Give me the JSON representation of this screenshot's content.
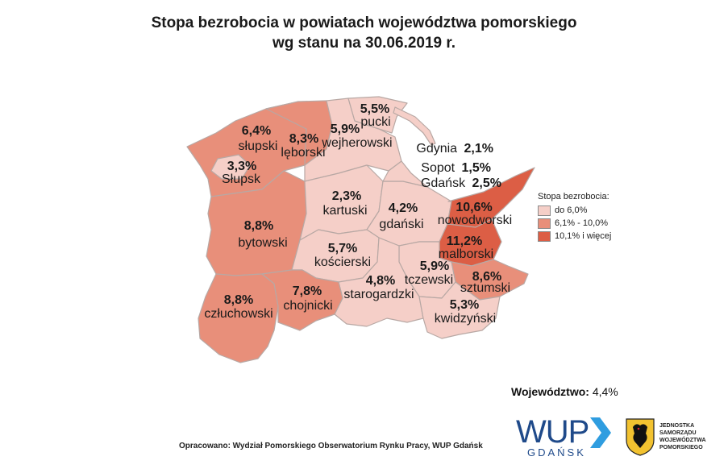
{
  "title": {
    "line1": "Stopa bezrobocia w powiatach województwa pomorskiego",
    "line2": "wg stanu na 30.06.2019 r."
  },
  "colors": {
    "low": "#f5cfc8",
    "mid": "#e88f7a",
    "high": "#dc5e45",
    "border": "#b8a8a4",
    "bay": "#ffffff"
  },
  "districts": [
    {
      "id": "slupski",
      "name": "słupski",
      "value": "6,4%",
      "class": "mid"
    },
    {
      "id": "slupsk",
      "name": "Słupsk",
      "value": "3,3%",
      "class": "low"
    },
    {
      "id": "leborski",
      "name": "lęborski",
      "value": "8,3%",
      "class": "mid"
    },
    {
      "id": "wejherowski",
      "name": "wejherowski",
      "value": "5,9%",
      "class": "low"
    },
    {
      "id": "pucki",
      "name": "pucki",
      "value": "5,5%",
      "class": "low"
    },
    {
      "id": "bytowski",
      "name": "bytowski",
      "value": "8,8%",
      "class": "mid"
    },
    {
      "id": "kartuski",
      "name": "kartuski",
      "value": "2,3%",
      "class": "low"
    },
    {
      "id": "gdanski",
      "name": "gdański",
      "value": "4,2%",
      "class": "low"
    },
    {
      "id": "nowodworski",
      "name": "nowodworski",
      "value": "10,6%",
      "class": "high"
    },
    {
      "id": "malborski",
      "name": "malborski",
      "value": "11,2%",
      "class": "high"
    },
    {
      "id": "koscierski",
      "name": "kościerski",
      "value": "5,7%",
      "class": "low"
    },
    {
      "id": "tczewski",
      "name": "tczewski",
      "value": "5,9%",
      "class": "low"
    },
    {
      "id": "sztumski",
      "name": "sztumski",
      "value": "8,6%",
      "class": "mid"
    },
    {
      "id": "czluchowski",
      "name": "człuchowski",
      "value": "8,8%",
      "class": "mid"
    },
    {
      "id": "chojnicki",
      "name": "chojnicki",
      "value": "7,8%",
      "class": "mid"
    },
    {
      "id": "starogardzki",
      "name": "starogardzki",
      "value": "4,8%",
      "class": "low"
    },
    {
      "id": "kwidzynski",
      "name": "kwidzyński",
      "value": "5,3%",
      "class": "low"
    }
  ],
  "cities": [
    {
      "name": "Gdynia",
      "value": "2,1%"
    },
    {
      "name": "Sopot",
      "value": "1,5%"
    },
    {
      "name": "Gdańsk",
      "value": "2,5%"
    }
  ],
  "legend": {
    "title": "Stopa bezrobocia:",
    "items": [
      {
        "label": "do 6,0%",
        "color": "#f5cfc8"
      },
      {
        "label": "6,1% - 10,0%",
        "color": "#e88f7a"
      },
      {
        "label": "10,1% i więcej",
        "color": "#dc5e45"
      }
    ]
  },
  "voivodeship": {
    "label": "Województwo:",
    "value": "4,4%"
  },
  "footer": "Opracowano: Wydział Pomorskiego Obserwatorium Rynku Pracy, WUP Gdańsk",
  "logos": {
    "wup": {
      "main": "WUP",
      "sub": "GDAŃSK"
    },
    "samorzad": [
      "JEDNOSTKA",
      "SAMORZĄDU",
      "WOJEWÓDZTWA",
      "POMORSKIEGO"
    ]
  }
}
